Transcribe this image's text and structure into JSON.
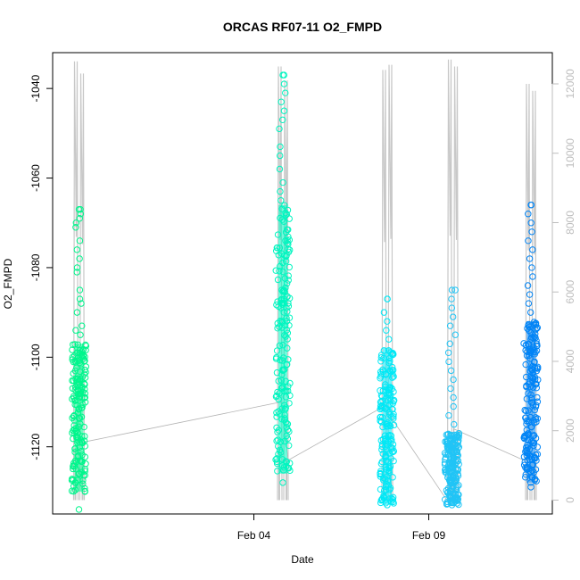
{
  "chart_data": {
    "type": "scatter",
    "title": "ORCAS RF07-11 O2_FMPD",
    "xlabel": "Date",
    "ylabel": "O2_FMPD",
    "x_ticks": [
      "Feb 04",
      "Feb 09"
    ],
    "y_ticks": [
      -1040,
      -1060,
      -1080,
      -1100,
      -1120
    ],
    "ylim": [
      -1135,
      -1032
    ],
    "y2_ticks": [
      0,
      2000,
      4000,
      6000,
      8000,
      10000,
      12000
    ],
    "y2lim": [
      -400,
      12900
    ],
    "colors": {
      "flight_1": "#00f58c",
      "flight_2": "#00f5c0",
      "flight_3": "#00e8f5",
      "flight_4": "#20c4f5",
      "flight_5": "#0084f5",
      "altitude_trace": "#c8c8c8",
      "connector": "#b4b4b4",
      "right_axis": "#bdbdbd"
    },
    "series": [
      {
        "x_day": "Jan 30",
        "color_key": "flight_1",
        "o2_range": [
          -1134,
          -1067
        ],
        "dense_range": [
          -1130,
          -1097
        ],
        "sparse_points": [
          -1067,
          -1068,
          -1069,
          -1070,
          -1071,
          -1074,
          -1076,
          -1078,
          -1080,
          -1081,
          -1085,
          -1087,
          -1088,
          -1090,
          -1093,
          -1094,
          -1095
        ]
      },
      {
        "x_day": "Feb 05",
        "color_key": "flight_2",
        "o2_range": [
          -1128,
          -1037
        ],
        "dense_range": [
          -1126,
          -1066
        ],
        "sparse_points": [
          -1037,
          -1039,
          -1041,
          -1043,
          -1045,
          -1047,
          -1049,
          -1053,
          -1055,
          -1058,
          -1061,
          -1063,
          -1065,
          -1085,
          -1087,
          -1089
        ]
      },
      {
        "x_day": "Feb 08",
        "color_key": "flight_3",
        "o2_range": [
          -1133,
          -1087
        ],
        "dense_range": [
          -1133,
          -1098
        ],
        "sparse_points": [
          -1087,
          -1090,
          -1092,
          -1094,
          -1096
        ]
      },
      {
        "x_day": "Feb 10",
        "color_key": "flight_4",
        "o2_range": [
          -1133,
          -1085
        ],
        "dense_range": [
          -1133,
          -1117
        ],
        "sparse_points": [
          -1085,
          -1087,
          -1089,
          -1091,
          -1093,
          -1095,
          -1097,
          -1099,
          -1101,
          -1103,
          -1105,
          -1107,
          -1109,
          -1111,
          -1113,
          -1115
        ]
      },
      {
        "x_day": "Feb 13",
        "color_key": "flight_5",
        "o2_range": [
          -1129,
          -1066
        ],
        "dense_range": [
          -1128,
          -1092
        ],
        "sparse_points": [
          -1066,
          -1068,
          -1070,
          -1072,
          -1074,
          -1076,
          -1078,
          -1080,
          -1082,
          -1084,
          -1086,
          -1088,
          -1090
        ]
      }
    ],
    "connector_o2": [
      -1119,
      -1110,
      -1123,
      -1111,
      -1133,
      -1116,
      -1123
    ],
    "altitude_peaks_m": [
      [
        12650,
        12300
      ],
      [
        12500,
        12100
      ],
      [
        12400,
        12550
      ],
      [
        12700,
        12500
      ],
      [
        12000,
        11800
      ]
    ]
  }
}
